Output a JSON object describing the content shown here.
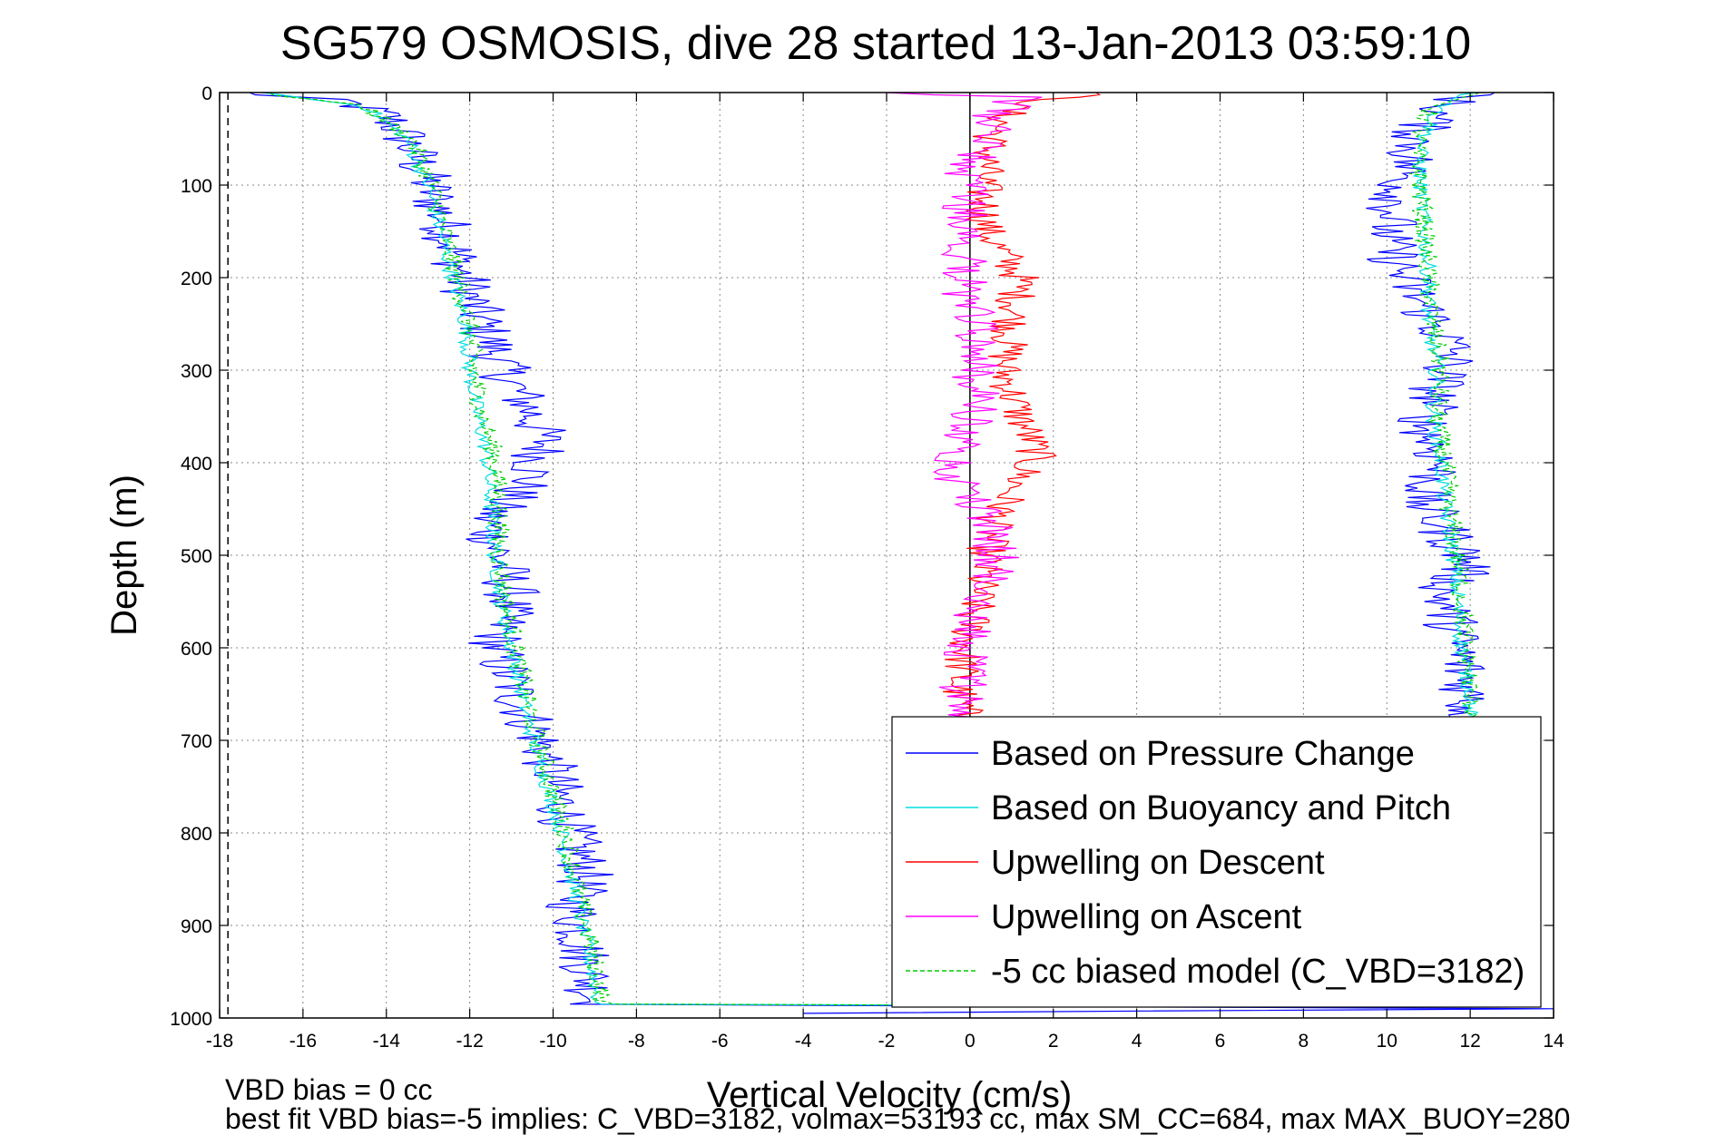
{
  "chart_data": {
    "type": "line",
    "title": "SG579 OSMOSIS, dive 28 started 13-Jan-2013 03:59:10",
    "xlabel": "Vertical Velocity (cm/s)",
    "ylabel": "Depth (m)",
    "xlim": [
      -18,
      14
    ],
    "ylim": [
      1000,
      0
    ],
    "y_reversed": true,
    "grid": true,
    "legend_position": "bottom-right",
    "x_ticks": [
      -18,
      -16,
      -14,
      -12,
      -10,
      -8,
      -6,
      -4,
      -2,
      0,
      2,
      4,
      6,
      8,
      10,
      12,
      14
    ],
    "y_ticks": [
      0,
      100,
      200,
      300,
      400,
      500,
      600,
      700,
      800,
      900,
      1000
    ],
    "reference_lines": [
      {
        "x": 0,
        "style": "solid",
        "color": "#000000"
      },
      {
        "x": -17.8,
        "style": "dashed",
        "color": "#000000"
      }
    ],
    "footnotes": [
      "VBD bias = 0 cc",
      "best fit VBD bias=-5 implies: C_VBD=3182, volmax=53193 cc, max SM_CC=684, max MAX_BUOY=280"
    ],
    "series": [
      {
        "name": "Based on Pressure Change",
        "color": "#0000ff",
        "style": "solid",
        "noise": 0.7,
        "points": [
          [
            -17.5,
            0
          ],
          [
            -15,
            10
          ],
          [
            -14,
            25
          ],
          [
            -13.6,
            45
          ],
          [
            -13.3,
            70
          ],
          [
            -13.0,
            100
          ],
          [
            -12.6,
            140
          ],
          [
            -12.3,
            180
          ],
          [
            -12.0,
            220
          ],
          [
            -11.6,
            260
          ],
          [
            -11.2,
            300
          ],
          [
            -10.6,
            340
          ],
          [
            -10.2,
            380
          ],
          [
            -10.6,
            420
          ],
          [
            -11.6,
            460
          ],
          [
            -11.3,
            500
          ],
          [
            -11.0,
            540
          ],
          [
            -11.4,
            600
          ],
          [
            -10.8,
            660
          ],
          [
            -10.3,
            700
          ],
          [
            -10.0,
            740
          ],
          [
            -9.6,
            800
          ],
          [
            -9.2,
            840
          ],
          [
            -9.5,
            880
          ],
          [
            -9.2,
            940
          ],
          [
            -9.0,
            985
          ],
          [
            13.5,
            990
          ],
          [
            -4,
            995
          ]
        ]
      },
      {
        "name": "Based on Buoyancy and Pitch",
        "color": "#00dddd",
        "style": "solid",
        "noise": 0.2,
        "points": [
          [
            -17.0,
            0
          ],
          [
            -14.5,
            15
          ],
          [
            -13.5,
            50
          ],
          [
            -13.0,
            100
          ],
          [
            -12.7,
            150
          ],
          [
            -12.4,
            200
          ],
          [
            -12.1,
            250
          ],
          [
            -12.0,
            300
          ],
          [
            -11.8,
            350
          ],
          [
            -11.6,
            390
          ],
          [
            -11.5,
            440
          ],
          [
            -11.4,
            500
          ],
          [
            -11.2,
            560
          ],
          [
            -10.9,
            620
          ],
          [
            -10.6,
            680
          ],
          [
            -10.2,
            740
          ],
          [
            -9.8,
            800
          ],
          [
            -9.5,
            860
          ],
          [
            -9.2,
            920
          ],
          [
            -8.9,
            985
          ],
          [
            13.5,
            988
          ]
        ]
      },
      {
        "name": "Upwelling on Descent",
        "color": "#ff0000",
        "style": "solid",
        "noise": 0.5,
        "points": [
          [
            3,
            0
          ],
          [
            1,
            15
          ],
          [
            0.5,
            50
          ],
          [
            0.3,
            100
          ],
          [
            0.4,
            150
          ],
          [
            1.2,
            200
          ],
          [
            1.0,
            250
          ],
          [
            0.8,
            300
          ],
          [
            1.2,
            350
          ],
          [
            1.6,
            390
          ],
          [
            1.0,
            430
          ],
          [
            0.5,
            470
          ],
          [
            0.3,
            520
          ],
          [
            0.1,
            560
          ],
          [
            -0.1,
            600
          ],
          [
            -0.3,
            640
          ],
          [
            -0.1,
            680
          ]
        ]
      },
      {
        "name": "Upwelling on Ascent",
        "color": "#ff00ff",
        "style": "solid",
        "noise": 0.6,
        "points": [
          [
            -0.3,
            680
          ],
          [
            -0.2,
            650
          ],
          [
            0,
            600
          ],
          [
            0.3,
            540
          ],
          [
            0.7,
            500
          ],
          [
            0.5,
            460
          ],
          [
            -0.3,
            420
          ],
          [
            -0.2,
            380
          ],
          [
            0.2,
            340
          ],
          [
            0.1,
            300
          ],
          [
            0.2,
            260
          ],
          [
            -0.1,
            220
          ],
          [
            -0.1,
            180
          ],
          [
            0.0,
            140
          ],
          [
            -0.2,
            100
          ],
          [
            0.2,
            60
          ],
          [
            0.6,
            25
          ],
          [
            1.2,
            5
          ],
          [
            -2,
            0
          ]
        ]
      },
      {
        "name": "-5 cc biased model (C_VBD=3182)",
        "color": "#00cc00",
        "style": "dashed",
        "noise": 0.25,
        "points": [
          [
            -17.0,
            0
          ],
          [
            -14.5,
            15
          ],
          [
            -13.4,
            50
          ],
          [
            -12.9,
            100
          ],
          [
            -12.6,
            150
          ],
          [
            -12.3,
            200
          ],
          [
            -12.0,
            250
          ],
          [
            -11.9,
            300
          ],
          [
            -11.7,
            350
          ],
          [
            -11.4,
            390
          ],
          [
            -11.3,
            440
          ],
          [
            -11.3,
            500
          ],
          [
            -11.1,
            560
          ],
          [
            -10.8,
            620
          ],
          [
            -10.5,
            680
          ],
          [
            -10.1,
            740
          ],
          [
            -9.7,
            800
          ],
          [
            -9.4,
            860
          ],
          [
            -9.1,
            920
          ],
          [
            -8.8,
            985
          ],
          [
            13.0,
            988
          ]
        ]
      }
    ],
    "ascent_series": {
      "pressure_change": {
        "color": "#0000ff",
        "noise": 0.7,
        "points": [
          [
            12.5,
            0
          ],
          [
            11.5,
            10
          ],
          [
            10.8,
            40
          ],
          [
            10.5,
            80
          ],
          [
            10.2,
            120
          ],
          [
            10.0,
            160
          ],
          [
            10.4,
            200
          ],
          [
            11.0,
            240
          ],
          [
            11.6,
            280
          ],
          [
            11.2,
            320
          ],
          [
            10.9,
            360
          ],
          [
            11.3,
            400
          ],
          [
            10.8,
            440
          ],
          [
            11.5,
            480
          ],
          [
            12.0,
            510
          ],
          [
            11.3,
            540
          ],
          [
            11.6,
            580
          ],
          [
            11.8,
            620
          ],
          [
            12.0,
            660
          ],
          [
            11.8,
            680
          ]
        ]
      },
      "buoyancy_pitch": {
        "color": "#00dddd",
        "noise": 0.2,
        "points": [
          [
            12.0,
            0
          ],
          [
            11.2,
            20
          ],
          [
            10.8,
            60
          ],
          [
            10.8,
            100
          ],
          [
            10.9,
            150
          ],
          [
            11.0,
            200
          ],
          [
            11.0,
            250
          ],
          [
            11.2,
            300
          ],
          [
            11.1,
            350
          ],
          [
            11.3,
            400
          ],
          [
            11.4,
            450
          ],
          [
            11.6,
            500
          ],
          [
            11.7,
            550
          ],
          [
            11.8,
            600
          ],
          [
            12.0,
            650
          ],
          [
            12.0,
            680
          ]
        ]
      },
      "model": {
        "color": "#00cc00",
        "noise": 0.25,
        "points": [
          [
            12.0,
            0
          ],
          [
            11.0,
            20
          ],
          [
            10.7,
            60
          ],
          [
            10.8,
            100
          ],
          [
            10.9,
            150
          ],
          [
            11.0,
            200
          ],
          [
            11.1,
            250
          ],
          [
            11.3,
            300
          ],
          [
            11.2,
            350
          ],
          [
            11.4,
            400
          ],
          [
            11.5,
            450
          ],
          [
            11.7,
            500
          ],
          [
            11.8,
            550
          ],
          [
            11.9,
            600
          ],
          [
            12.0,
            650
          ],
          [
            12.1,
            680
          ]
        ]
      }
    }
  }
}
